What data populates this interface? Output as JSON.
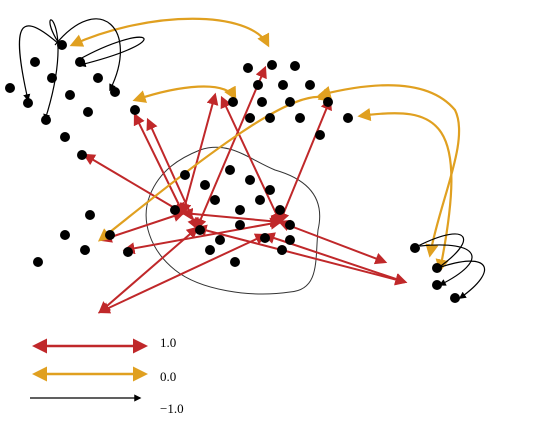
{
  "legend": [
    {
      "label": "1.0"
    },
    {
      "label": "0.0"
    },
    {
      "label": "−1.0"
    }
  ]
}
